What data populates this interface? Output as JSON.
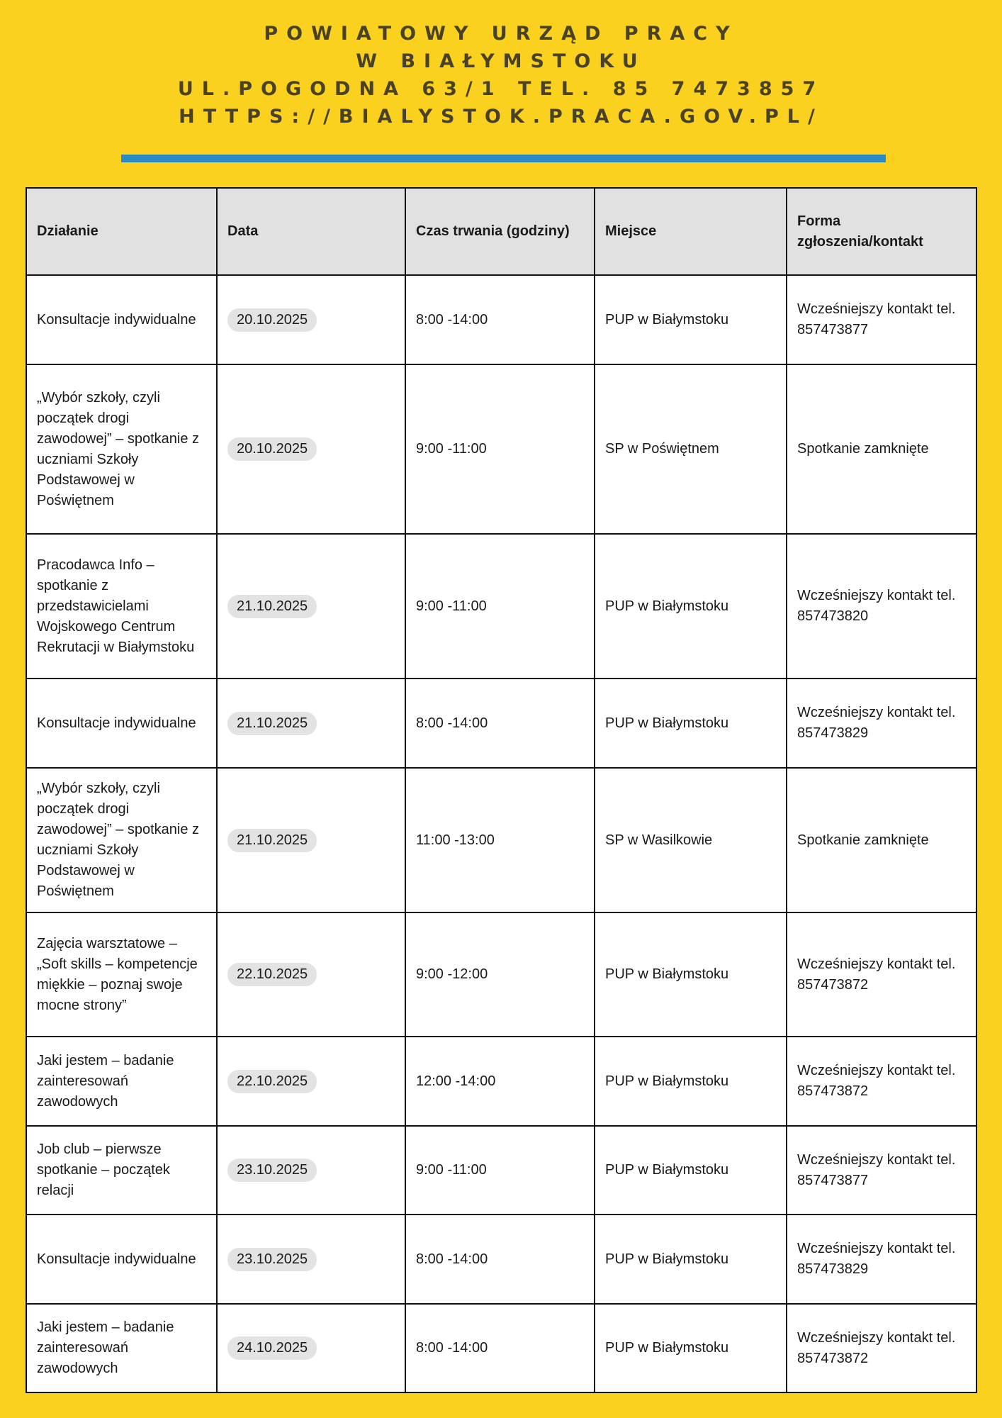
{
  "header": {
    "lines": [
      "POWIATOWY URZĄD PRACY",
      "W BIAŁYMSTOKU",
      "UL.POGODNA 63/1 TEL. 85 7473857",
      "HTTPS://BIALYSTOK.PRACA.GOV.PL/"
    ]
  },
  "colors": {
    "background": "#FBD11F",
    "accent_bar": "#2A8BC4",
    "header_row": "#E1E1E1"
  },
  "table": {
    "columns": [
      "Działanie",
      "Data",
      "Czas trwania (godziny)",
      "Miejsce",
      "Forma zgłoszenia/kontakt"
    ],
    "rows": [
      [
        "Konsultacje indywidualne",
        "20.10.2025",
        "8:00 -14:00",
        "PUP w Białymstoku",
        "Wcześniejszy kontakt tel. 857473877"
      ],
      [
        "„Wybór szkoły, czyli początek drogi zawodowej” – spotkanie z uczniami Szkoły Podstawowej w Poświętnem",
        "20.10.2025",
        "9:00 -11:00",
        "SP w Poświętnem",
        "Spotkanie zamknięte"
      ],
      [
        "Pracodawca Info – spotkanie z przedstawicielami Wojskowego Centrum Rekrutacji w Białymstoku",
        "21.10.2025",
        "9:00 -11:00",
        "PUP w Białymstoku",
        "Wcześniejszy kontakt tel. 857473820"
      ],
      [
        "Konsultacje indywidualne",
        "21.10.2025",
        "8:00 -14:00",
        "PUP w Białymstoku",
        "Wcześniejszy kontakt tel. 857473829"
      ],
      [
        "„Wybór szkoły, czyli początek drogi zawodowej” – spotkanie z uczniami Szkoły Podstawowej w Poświętnem",
        "21.10.2025",
        "11:00 -13:00",
        "SP w Wasilkowie",
        "Spotkanie zamknięte"
      ],
      [
        "Zajęcia warsztatowe – „Soft skills – kompetencje miękkie – poznaj swoje mocne strony”",
        "22.10.2025",
        "9:00 -12:00",
        "PUP w Białymstoku",
        "Wcześniejszy kontakt tel. 857473872"
      ],
      [
        "Jaki jestem – badanie zainteresowań zawodowych",
        "22.10.2025",
        "12:00 -14:00",
        "PUP w Białymstoku",
        "Wcześniejszy kontakt tel. 857473872"
      ],
      [
        "Job club – pierwsze spotkanie – początek relacji",
        "23.10.2025",
        "9:00 -11:00",
        "PUP w Białymstoku",
        "Wcześniejszy kontakt tel. 857473877"
      ],
      [
        "Konsultacje indywidualne",
        "23.10.2025",
        "8:00 -14:00",
        "PUP w Białymstoku",
        "Wcześniejszy kontakt tel. 857473829"
      ],
      [
        "Jaki jestem – badanie zainteresowań zawodowych",
        "24.10.2025",
        "8:00 -14:00",
        "PUP w Białymstoku",
        "Wcześniejszy kontakt tel. 857473872"
      ]
    ]
  }
}
